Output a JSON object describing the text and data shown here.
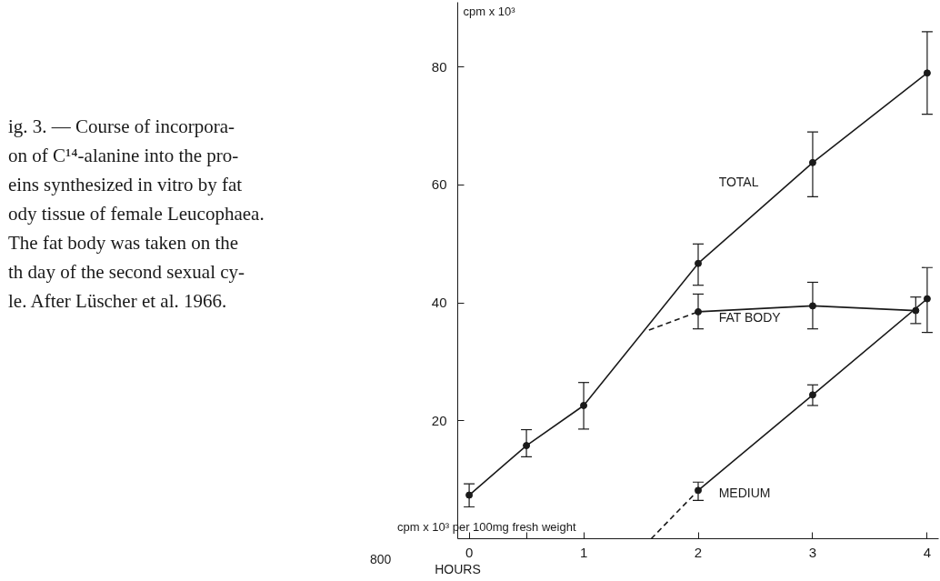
{
  "chart_data": {
    "type": "line",
    "ylabel": "cpm x 10³",
    "xlabel": "HOURS",
    "x": [
      0,
      0.5,
      1,
      2,
      3,
      4
    ],
    "xlim": [
      -0.1,
      4.1
    ],
    "ylim": [
      0,
      91
    ],
    "xticks": [
      0,
      {
        "value": 0.5,
        "label": null
      },
      1,
      2,
      3,
      4
    ],
    "yticks": [
      20,
      40,
      60,
      80
    ],
    "grid": false,
    "marker": "circle",
    "line_style": "solid",
    "series": [
      {
        "name": "TOTAL",
        "color": "#1a1a1a",
        "values": [
          7.4,
          15.8,
          22.6,
          46.7,
          63.8,
          79
        ],
        "errors": [
          [
            5.4,
            9.3
          ],
          [
            13.9,
            18.5
          ],
          [
            18.6,
            26.5
          ],
          [
            43,
            50
          ],
          [
            58,
            69
          ],
          [
            72,
            86
          ]
        ]
      },
      {
        "name": "FAT BODY",
        "color": "#1a1a1a",
        "x": [
          2,
          3,
          3.9
        ],
        "values": [
          38.5,
          39.5,
          38.7
        ],
        "errors": [
          [
            35.6,
            41.5
          ],
          [
            35.6,
            43.5
          ],
          [
            36.5,
            41
          ]
        ]
      },
      {
        "name": "MEDIUM",
        "color": "#1a1a1a",
        "x": [
          2,
          3,
          4
        ],
        "values": [
          8.2,
          24.4,
          40.7
        ],
        "errors": [
          [
            6.5,
            9.6
          ],
          [
            22.6,
            26.1
          ],
          [
            35,
            46
          ]
        ]
      },
      {
        "color": "#1a1a1a",
        "x": [
          1.57,
          2
        ],
        "values": [
          35.4,
          38.5
        ],
        "line_style": "dashed",
        "marker": "none"
      },
      {
        "color": "#1a1a1a",
        "x": [
          1.59,
          2
        ],
        "values": [
          0,
          8.2
        ],
        "line_style": "dashed",
        "marker": "none"
      }
    ],
    "annotations": [
      "ig. 3. — Course of incorpora-\non of C¹⁴-alanine into the pro-\neins synthesized in vitro by fat\nody tissue of female Leucophaea.\nThe fat body was taken on the\nth day of the second sexual cy-\nle. After Lüscher et al. 1966.",
      "cpm x 10³ per 100mg fresh weight",
      "800"
    ]
  }
}
